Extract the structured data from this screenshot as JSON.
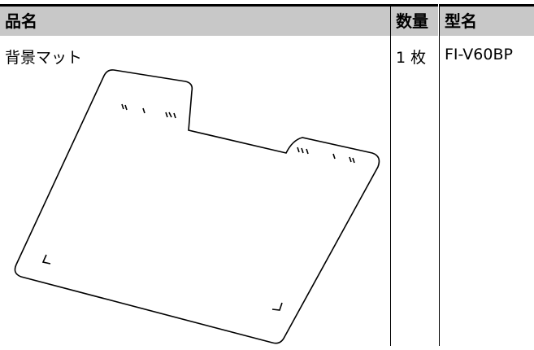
{
  "table": {
    "headers": [
      "品名",
      "数量",
      "型名"
    ],
    "rows": [
      [
        "背景マット",
        "1 枚",
        "FI-V60BP"
      ]
    ]
  }
}
